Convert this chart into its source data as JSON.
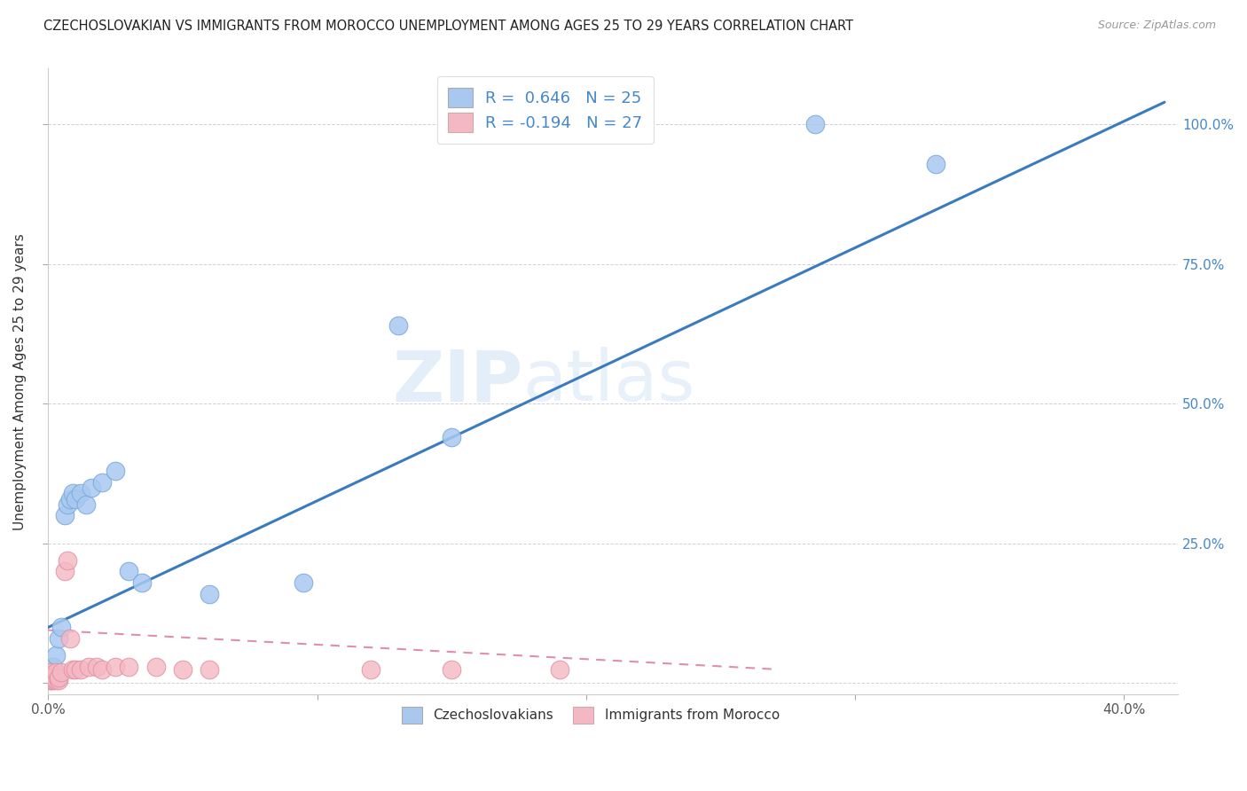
{
  "title": "CZECHOSLOVAKIAN VS IMMIGRANTS FROM MOROCCO UNEMPLOYMENT AMONG AGES 25 TO 29 YEARS CORRELATION CHART",
  "source": "Source: ZipAtlas.com",
  "ylabel": "Unemployment Among Ages 25 to 29 years",
  "xlim": [
    0.0,
    0.42
  ],
  "ylim": [
    -0.02,
    1.1
  ],
  "xticks": [
    0.0,
    0.1,
    0.2,
    0.3,
    0.4
  ],
  "xtick_labels": [
    "0.0%",
    "",
    "",
    "",
    "40.0%"
  ],
  "yticks": [
    0.0,
    0.25,
    0.5,
    0.75,
    1.0
  ],
  "ytick_labels_right": [
    "",
    "25.0%",
    "50.0%",
    "75.0%",
    "100.0%"
  ],
  "blue_color": "#a8c8f0",
  "blue_edge": "#7aaad8",
  "pink_color": "#f4b8c4",
  "pink_edge": "#e090a0",
  "line_blue": "#3a7bbf",
  "line_pink": "#e090a8",
  "watermark_zip": "ZIP",
  "watermark_atlas": "atlas",
  "czech_x": [
    0.001,
    0.001,
    0.002,
    0.003,
    0.004,
    0.005,
    0.006,
    0.007,
    0.008,
    0.009,
    0.01,
    0.012,
    0.014,
    0.016,
    0.02,
    0.025,
    0.03,
    0.035,
    0.06,
    0.095,
    0.13,
    0.15,
    0.285,
    0.33
  ],
  "czech_y": [
    0.005,
    0.02,
    0.03,
    0.05,
    0.08,
    0.1,
    0.3,
    0.32,
    0.33,
    0.34,
    0.33,
    0.34,
    0.32,
    0.35,
    0.36,
    0.38,
    0.2,
    0.18,
    0.16,
    0.18,
    0.64,
    0.44,
    1.0,
    0.93
  ],
  "morocco_x": [
    0.001,
    0.001,
    0.001,
    0.002,
    0.002,
    0.003,
    0.003,
    0.004,
    0.004,
    0.005,
    0.006,
    0.007,
    0.008,
    0.009,
    0.01,
    0.012,
    0.015,
    0.018,
    0.02,
    0.025,
    0.03,
    0.04,
    0.05,
    0.06,
    0.12,
    0.15,
    0.19
  ],
  "morocco_y": [
    0.005,
    0.01,
    0.02,
    0.005,
    0.01,
    0.005,
    0.02,
    0.005,
    0.01,
    0.02,
    0.2,
    0.22,
    0.08,
    0.025,
    0.025,
    0.025,
    0.03,
    0.03,
    0.025,
    0.03,
    0.03,
    0.03,
    0.025,
    0.025,
    0.025,
    0.025,
    0.025
  ],
  "blue_line_x0": 0.0,
  "blue_line_y0": 0.1,
  "blue_line_x1": 0.415,
  "blue_line_y1": 1.04,
  "pink_line_x0": 0.0,
  "pink_line_y0": 0.095,
  "pink_line_x1": 0.27,
  "pink_line_y1": 0.025
}
